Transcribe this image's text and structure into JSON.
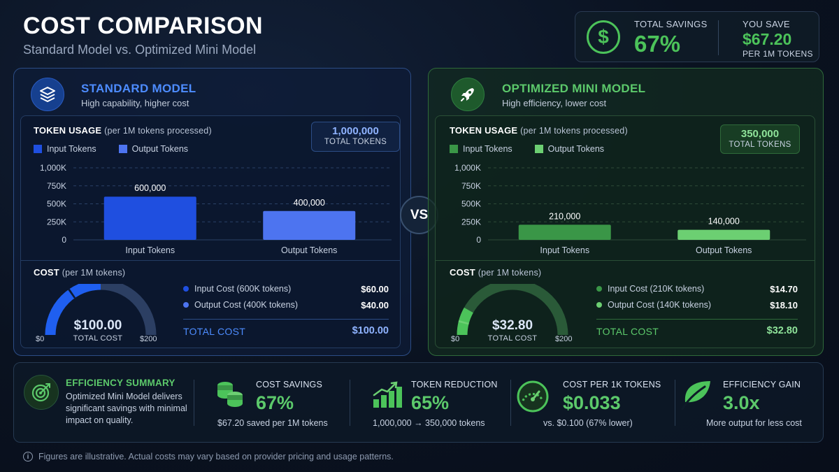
{
  "header": {
    "title": "COST COMPARISON",
    "subtitle": "Standard Model vs. Optimized Mini Model"
  },
  "savings": {
    "icon": "dollar-icon",
    "total_label": "TOTAL SAVINGS",
    "total_value": "67%",
    "save_label": "YOU SAVE",
    "save_value": "$67.20",
    "save_note": "PER 1M TOKENS"
  },
  "colors": {
    "std_input": "#1f4fe0",
    "std_output": "#4d74f0",
    "opt_input": "#3a9647",
    "opt_output": "#6ccf72",
    "accent_green": "#4cc35a",
    "accent_blue": "#4d8cff"
  },
  "standard": {
    "icon": "layers-icon",
    "title": "STANDARD MODEL",
    "subtitle": "High capability, higher cost",
    "usage_title": "TOKEN USAGE",
    "usage_note": "(per 1M tokens processed)",
    "legend_input": "Input Tokens",
    "legend_output": "Output Tokens",
    "total_tokens": "1,000,000",
    "total_tokens_label": "TOTAL TOKENS",
    "cost_title": "COST",
    "cost_note": "(per 1M tokens)",
    "gauge_amount": "$100.00",
    "gauge_label": "TOTAL COST",
    "gauge_min": "$0",
    "gauge_max": "$200",
    "gauge_fraction": 0.5,
    "gauge_split": 0.3,
    "input_cost_label": "Input Cost (600K tokens)",
    "input_cost_value": "$60.00",
    "output_cost_label": "Output Cost (400K tokens)",
    "output_cost_value": "$40.00",
    "total_cost_label": "TOTAL COST",
    "total_cost_value": "$100.00"
  },
  "optimized": {
    "icon": "rocket-icon",
    "title": "OPTIMIZED MINI MODEL",
    "subtitle": "High efficiency, lower cost",
    "usage_title": "TOKEN USAGE",
    "usage_note": "(per 1M tokens processed)",
    "legend_input": "Input Tokens",
    "legend_output": "Output Tokens",
    "total_tokens": "350,000",
    "total_tokens_label": "TOTAL TOKENS",
    "cost_title": "COST",
    "cost_note": "(per 1M tokens)",
    "gauge_amount": "$32.80",
    "gauge_label": "TOTAL COST",
    "gauge_min": "$0",
    "gauge_max": "$200",
    "gauge_fraction": 0.164,
    "gauge_split": 0.0735,
    "input_cost_label": "Input Cost (210K tokens)",
    "input_cost_value": "$14.70",
    "output_cost_label": "Output Cost (140K tokens)",
    "output_cost_value": "$18.10",
    "total_cost_label": "TOTAL COST",
    "total_cost_value": "$32.80"
  },
  "vs_label": "VS",
  "chart_data": [
    {
      "type": "bar",
      "categories": [
        "Input Tokens",
        "Output Tokens"
      ],
      "values": [
        600000,
        400000
      ],
      "data_labels": [
        "600,000",
        "400,000"
      ],
      "yticks": [
        "0",
        "250K",
        "500K",
        "750K",
        "1,000K"
      ],
      "ylim": [
        0,
        1000000
      ],
      "grid": true,
      "legend": "top-left"
    },
    {
      "type": "bar",
      "categories": [
        "Input Tokens",
        "Output Tokens"
      ],
      "values": [
        210000,
        140000
      ],
      "data_labels": [
        "210,000",
        "140,000"
      ],
      "yticks": [
        "0",
        "250K",
        "500K",
        "750K",
        "1,000K"
      ],
      "ylim": [
        0,
        1000000
      ],
      "grid": true,
      "legend": "top-left"
    }
  ],
  "summary": {
    "efficiency": {
      "icon": "target-icon",
      "title": "EFFICIENCY SUMMARY",
      "description": "Optimized Mini Model delivers significant savings with minimal impact on quality."
    },
    "metrics": [
      {
        "icon": "coins-icon",
        "label": "COST SAVINGS",
        "value": "67%",
        "note": "$67.20 saved per 1M tokens"
      },
      {
        "icon": "bar-growth-icon",
        "label": "TOKEN REDUCTION",
        "value": "65%",
        "note": "1,000,000 → 350,000 tokens"
      },
      {
        "icon": "speedometer-icon",
        "label": "COST PER 1K TOKENS",
        "value": "$0.033",
        "note": "vs. $0.100  (67% lower)"
      },
      {
        "icon": "leaf-icon",
        "label": "EFFICIENCY GAIN",
        "value": "3.0x",
        "note": "More output for less cost"
      }
    ]
  },
  "footnote": {
    "icon": "info-icon",
    "text": "Figures are illustrative. Actual costs may vary based on provider pricing and usage patterns."
  }
}
